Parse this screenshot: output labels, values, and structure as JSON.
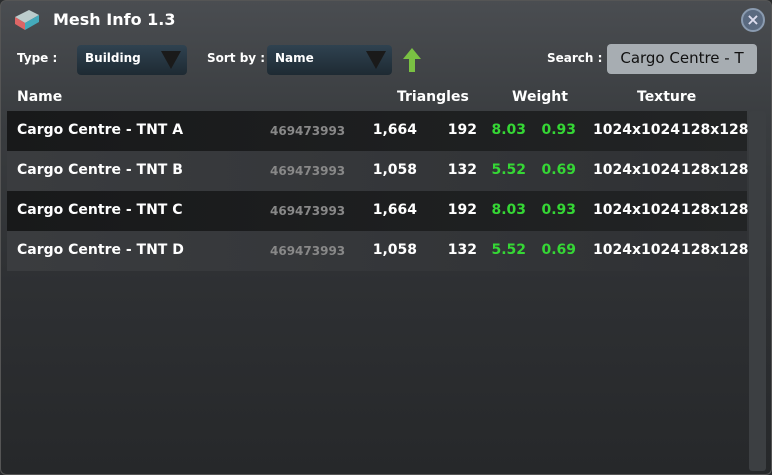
{
  "window": {
    "title": "Mesh Info 1.3",
    "close_icon": "close-icon"
  },
  "filters": {
    "type_label": "Type :",
    "type_value": "Building",
    "sort_label": "Sort by :",
    "sort_value": "Name",
    "sort_direction": "ascending",
    "search_label": "Search :",
    "search_value": "Cargo Centre - T"
  },
  "colors": {
    "accent_green": "#35d735",
    "arrow_green": "#7ac143"
  },
  "table": {
    "headers": {
      "name": "Name",
      "triangles": "Triangles",
      "weight": "Weight",
      "texture": "Texture"
    },
    "rows": [
      {
        "name": "Cargo Centre - TNT A",
        "id": "469473993",
        "tri": "1,664",
        "lod": "192",
        "w1": "8.03",
        "w2": "0.93",
        "tex1": "1024x1024",
        "tex2": "128x128"
      },
      {
        "name": "Cargo Centre - TNT B",
        "id": "469473993",
        "tri": "1,058",
        "lod": "132",
        "w1": "5.52",
        "w2": "0.69",
        "tex1": "1024x1024",
        "tex2": "128x128"
      },
      {
        "name": "Cargo Centre - TNT C",
        "id": "469473993",
        "tri": "1,664",
        "lod": "192",
        "w1": "8.03",
        "w2": "0.93",
        "tex1": "1024x1024",
        "tex2": "128x128"
      },
      {
        "name": "Cargo Centre - TNT D",
        "id": "469473993",
        "tri": "1,058",
        "lod": "132",
        "w1": "5.52",
        "w2": "0.69",
        "tex1": "1024x1024",
        "tex2": "128x128"
      }
    ]
  }
}
